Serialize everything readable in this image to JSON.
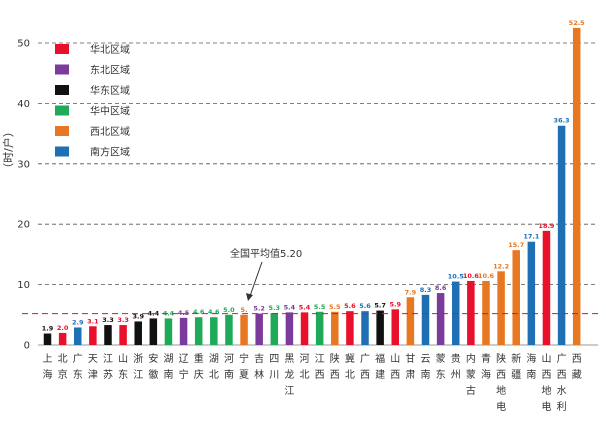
{
  "chart_data": {
    "type": "bar",
    "ylabel": "（时/户）",
    "ylim": [
      0,
      55
    ],
    "yticks": [
      0,
      10,
      20,
      30,
      40,
      50
    ],
    "grid": "horizontal-dashed",
    "legend_position": "top-left",
    "legend": [
      {
        "name": "华北区域",
        "color": "#e8102a"
      },
      {
        "name": "东北区域",
        "color": "#7a3b9c"
      },
      {
        "name": "华东区域",
        "color": "#111111"
      },
      {
        "name": "华中区域",
        "color": "#1faa59"
      },
      {
        "name": "西北区域",
        "color": "#e87722"
      },
      {
        "name": "南方区域",
        "color": "#1f6fb5"
      }
    ],
    "average": {
      "value": 5.2,
      "label": "全国平均值5.20"
    },
    "categories": [
      "上海",
      "北京",
      "广东",
      "天津",
      "江苏",
      "山东",
      "浙江",
      "安徽",
      "湖南",
      "辽宁",
      "重庆",
      "湖北",
      "河南",
      "宁夏",
      "吉林",
      "四川",
      "黑龙江",
      "河北",
      "江西",
      "陕西",
      "冀北",
      "广西",
      "福建",
      "山西",
      "甘肃",
      "云南",
      "蒙东",
      "贵州",
      "内蒙古",
      "青海",
      "陕西地电",
      "新疆",
      "海南",
      "山西地电",
      "广西水利",
      "西藏"
    ],
    "values": [
      1.9,
      2.0,
      2.9,
      3.1,
      3.3,
      3.3,
      3.9,
      4.4,
      4.4,
      4.5,
      4.6,
      4.6,
      5.0,
      5.0,
      5.2,
      5.3,
      5.4,
      5.4,
      5.5,
      5.5,
      5.6,
      5.6,
      5.7,
      5.9,
      7.9,
      8.3,
      8.6,
      10.5,
      10.6,
      10.6,
      12.2,
      15.7,
      17.1,
      18.9,
      36.3,
      52.5
    ],
    "regions": [
      "华东区域",
      "华北区域",
      "南方区域",
      "华北区域",
      "华东区域",
      "华北区域",
      "华东区域",
      "华东区域",
      "华中区域",
      "东北区域",
      "华中区域",
      "华中区域",
      "华中区域",
      "西北区域",
      "东北区域",
      "华中区域",
      "东北区域",
      "华北区域",
      "华中区域",
      "西北区域",
      "华北区域",
      "南方区域",
      "华东区域",
      "华北区域",
      "西北区域",
      "南方区域",
      "东北区域",
      "南方区域",
      "华北区域",
      "西北区域",
      "西北区域",
      "西北区域",
      "南方区域",
      "华北区域",
      "南方区域",
      "西北区域"
    ],
    "value_labels": [
      "1.9",
      "2.0",
      "2.9",
      "3.1",
      "3.3",
      "3.3",
      "3.9",
      "4.4",
      "4.4",
      "4.5",
      "4.6",
      "4.6",
      "5.0",
      "5.",
      "5.2",
      "5.3",
      "5.4",
      "5.4",
      "5.5",
      "5.5",
      "5.6",
      "5.6",
      "5.7",
      "5.9",
      "7.9",
      "8.3",
      "8.6",
      "10.5",
      "10.6",
      "10.6",
      "12.2",
      "15.7",
      "17.1",
      "18.9",
      "36.3",
      "52.5"
    ]
  }
}
